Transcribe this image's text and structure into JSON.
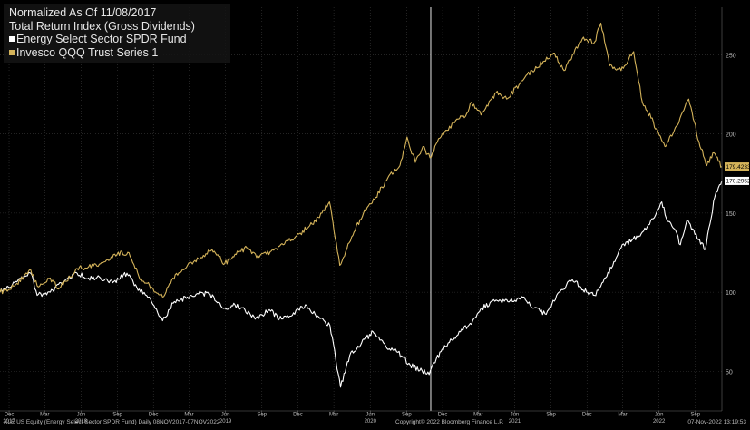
{
  "legend": {
    "title": "Normalized As Of 11/08/2017",
    "subtitle": "Total Return Index (Gross Dividends)",
    "series1": "Energy Select Sector SPDR Fund",
    "series2": "Invesco QQQ Trust Series 1"
  },
  "footer": {
    "left": "XLE US Equity (Energy Select Sector SPDR Fund)  Daily 08NOV2017-07NOV2022",
    "center": "Copyright© 2022 Bloomberg Finance L.P.",
    "right": "07-Nov-2022 13:19:53"
  },
  "chart_data": {
    "type": "line",
    "ylim": [
      25,
      280
    ],
    "xlim": [
      "2017-11-08",
      "2022-11-07"
    ],
    "y_ticks": [
      "250",
      "200",
      "150",
      "100",
      "50"
    ],
    "y_tick_values": [
      250,
      200,
      150,
      100,
      50
    ],
    "x_ticks": [
      {
        "m": "Dec",
        "y": "2017",
        "date": "2017-12-01"
      },
      {
        "m": "Mar",
        "y": "",
        "date": "2018-03-01"
      },
      {
        "m": "Jun",
        "y": "2018",
        "date": "2018-06-01"
      },
      {
        "m": "Sep",
        "y": "",
        "date": "2018-09-01"
      },
      {
        "m": "Dec",
        "y": "",
        "date": "2018-12-01"
      },
      {
        "m": "Mar",
        "y": "",
        "date": "2019-03-01"
      },
      {
        "m": "Jun",
        "y": "2019",
        "date": "2019-06-01"
      },
      {
        "m": "Sep",
        "y": "",
        "date": "2019-09-01"
      },
      {
        "m": "Dec",
        "y": "",
        "date": "2019-12-01"
      },
      {
        "m": "Mar",
        "y": "",
        "date": "2020-03-01"
      },
      {
        "m": "Jun",
        "y": "2020",
        "date": "2020-06-01"
      },
      {
        "m": "Sep",
        "y": "",
        "date": "2020-09-01"
      },
      {
        "m": "Dec",
        "y": "",
        "date": "2020-12-01"
      },
      {
        "m": "Mar",
        "y": "",
        "date": "2021-03-01"
      },
      {
        "m": "Jun",
        "y": "2021",
        "date": "2021-06-01"
      },
      {
        "m": "Sep",
        "y": "",
        "date": "2021-09-01"
      },
      {
        "m": "Dec",
        "y": "",
        "date": "2021-12-01"
      },
      {
        "m": "Mar",
        "y": "",
        "date": "2022-03-01"
      },
      {
        "m": "Jun",
        "y": "2022",
        "date": "2022-06-01"
      },
      {
        "m": "Sep",
        "y": "",
        "date": "2022-09-01"
      }
    ],
    "vertical_marker": "2020-11-01",
    "grid": true,
    "series": [
      {
        "name": "Energy Select Sector SPDR Fund",
        "color": "#ffffff",
        "last_label": "170.2952",
        "last_value": 170.3,
        "x": [
          "2017-11-08",
          "2017-12-15",
          "2018-01-25",
          "2018-02-10",
          "2018-03-15",
          "2018-04-20",
          "2018-05-22",
          "2018-06-20",
          "2018-07-20",
          "2018-08-20",
          "2018-09-25",
          "2018-10-20",
          "2018-11-20",
          "2018-12-24",
          "2019-01-20",
          "2019-02-25",
          "2019-03-25",
          "2019-04-20",
          "2019-05-30",
          "2019-06-25",
          "2019-07-20",
          "2019-08-15",
          "2019-09-20",
          "2019-10-15",
          "2019-11-20",
          "2019-12-20",
          "2020-01-20",
          "2020-02-20",
          "2020-03-18",
          "2020-04-10",
          "2020-05-10",
          "2020-06-08",
          "2020-07-10",
          "2020-08-10",
          "2020-09-10",
          "2020-10-28",
          "2020-11-15",
          "2020-12-15",
          "2021-01-15",
          "2021-02-15",
          "2021-03-10",
          "2021-04-15",
          "2021-05-15",
          "2021-06-25",
          "2021-07-20",
          "2021-08-20",
          "2021-09-15",
          "2021-10-25",
          "2021-11-30",
          "2021-12-20",
          "2022-01-20",
          "2022-02-25",
          "2022-03-25",
          "2022-04-20",
          "2022-05-20",
          "2022-06-08",
          "2022-06-22",
          "2022-07-10",
          "2022-07-25",
          "2022-08-10",
          "2022-08-25",
          "2022-09-26",
          "2022-10-20",
          "2022-11-07"
        ],
        "y": [
          100,
          106,
          112,
          98,
          100,
          107,
          112,
          109,
          109,
          106,
          112,
          103,
          97,
          82,
          93,
          97,
          99,
          99,
          90,
          92,
          89,
          83,
          89,
          83,
          87,
          92,
          85,
          79,
          40,
          60,
          68,
          75,
          66,
          62,
          54,
          48,
          58,
          68,
          75,
          82,
          90,
          95,
          94,
          97,
          90,
          86,
          98,
          108,
          100,
          98,
          110,
          128,
          133,
          138,
          147,
          157,
          145,
          140,
          130,
          145,
          140,
          127,
          160,
          170.3
        ]
      },
      {
        "name": "Invesco QQQ Trust Series 1",
        "color": "#d4b35a",
        "last_label": "179.4233",
        "last_value": 179.4,
        "x": [
          "2017-11-08",
          "2017-12-15",
          "2018-01-25",
          "2018-02-10",
          "2018-03-15",
          "2018-04-05",
          "2018-05-22",
          "2018-06-20",
          "2018-07-20",
          "2018-08-25",
          "2018-09-30",
          "2018-10-25",
          "2018-12-24",
          "2019-01-25",
          "2019-02-25",
          "2019-03-25",
          "2019-04-28",
          "2019-05-30",
          "2019-06-25",
          "2019-07-25",
          "2019-08-25",
          "2019-09-25",
          "2019-10-25",
          "2019-11-25",
          "2019-12-31",
          "2020-01-31",
          "2020-02-19",
          "2020-03-16",
          "2020-04-15",
          "2020-05-15",
          "2020-06-15",
          "2020-07-15",
          "2020-08-15",
          "2020-09-02",
          "2020-09-23",
          "2020-10-12",
          "2020-10-30",
          "2020-11-30",
          "2020-12-31",
          "2021-01-31",
          "2021-02-12",
          "2021-03-08",
          "2021-04-15",
          "2021-05-12",
          "2021-06-15",
          "2021-07-15",
          "2021-08-15",
          "2021-09-07",
          "2021-10-04",
          "2021-11-19",
          "2021-12-20",
          "2022-01-05",
          "2022-01-27",
          "2022-02-25",
          "2022-03-29",
          "2022-04-20",
          "2022-05-12",
          "2022-06-16",
          "2022-07-15",
          "2022-08-15",
          "2022-09-10",
          "2022-09-30",
          "2022-10-15",
          "2022-11-07"
        ],
        "y": [
          100,
          104,
          114,
          104,
          109,
          102,
          115,
          116,
          118,
          124,
          125,
          110,
          97,
          111,
          117,
          121,
          127,
          118,
          124,
          128,
          122,
          126,
          130,
          135,
          142,
          150,
          157,
          117,
          135,
          150,
          160,
          172,
          180,
          198,
          182,
          192,
          185,
          200,
          207,
          213,
          220,
          212,
          226,
          222,
          232,
          240,
          246,
          251,
          240,
          260,
          258,
          270,
          243,
          240,
          252,
          220,
          210,
          192,
          205,
          222,
          195,
          180,
          188,
          179.4
        ]
      }
    ]
  }
}
